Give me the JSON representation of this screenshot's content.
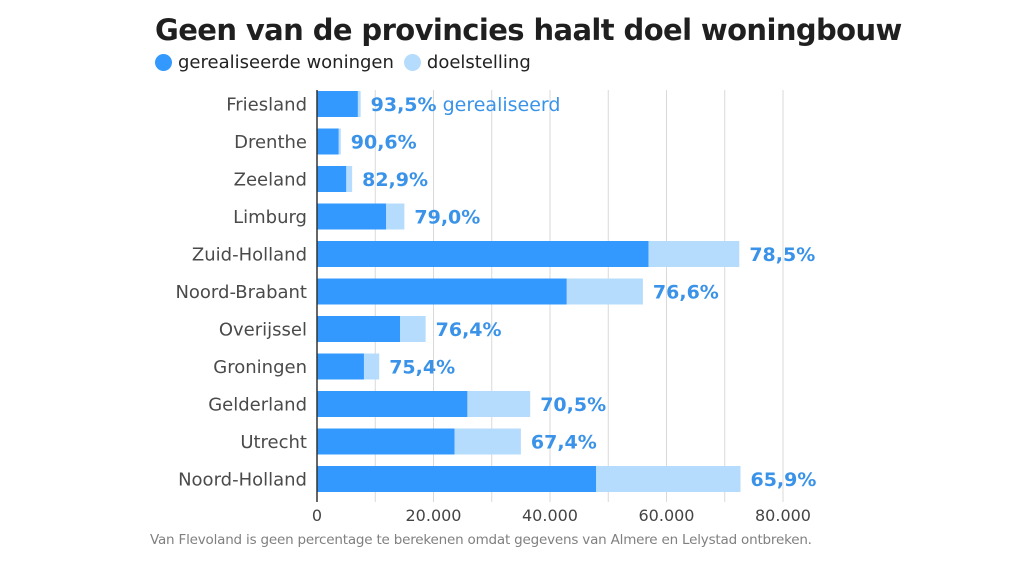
{
  "colors": {
    "realized": "#3399ff",
    "target": "#b5dcfd",
    "label": "#3a93e8",
    "grid": "#d9d9d9",
    "axis": "#333333"
  },
  "chart_data": {
    "type": "bar",
    "orientation": "horizontal",
    "stacked": "overlay",
    "title": "Geen van de provincies haalt doel woningbouw",
    "legend": {
      "placement": "top-left",
      "entries": [
        {
          "name": "gerealiseerde woningen",
          "color": "#3399ff"
        },
        {
          "name": "doelstelling",
          "color": "#b5dcfd"
        }
      ]
    },
    "categories": [
      "Friesland",
      "Drenthe",
      "Zeeland",
      "Limburg",
      "Zuid-Holland",
      "Noord-Brabant",
      "Overijssel",
      "Groningen",
      "Gelderland",
      "Utrecht",
      "Noord-Holland"
    ],
    "series": [
      {
        "name": "gerealiseerde woningen",
        "values": [
          7000,
          3700,
          5000,
          11850,
          56900,
          42850,
          14250,
          8050,
          25800,
          23600,
          47900
        ]
      },
      {
        "name": "doelstelling",
        "values": [
          7490,
          4080,
          6030,
          15000,
          72500,
          55950,
          18650,
          10680,
          36600,
          35000,
          72700
        ]
      }
    ],
    "data_labels": [
      "93,5%",
      "90,6%",
      "82,9%",
      "79,0%",
      "78,5%",
      "76,6%",
      "76,4%",
      "75,4%",
      "70,5%",
      "67,4%",
      "65,9%"
    ],
    "first_label_suffix": "gerealiseerd",
    "xlim": [
      0,
      80000
    ],
    "xticks": [
      0,
      20000,
      40000,
      60000,
      80000
    ],
    "xtick_labels": [
      "0",
      "20.000",
      "40.000",
      "60.000",
      "80.000"
    ],
    "minor_grid_step": 10000,
    "grid": true,
    "xlabel": "",
    "ylabel": ""
  },
  "footnote": "Van Flevoland is geen percentage te berekenen omdat gegevens van Almere en Lelystad ontbreken."
}
